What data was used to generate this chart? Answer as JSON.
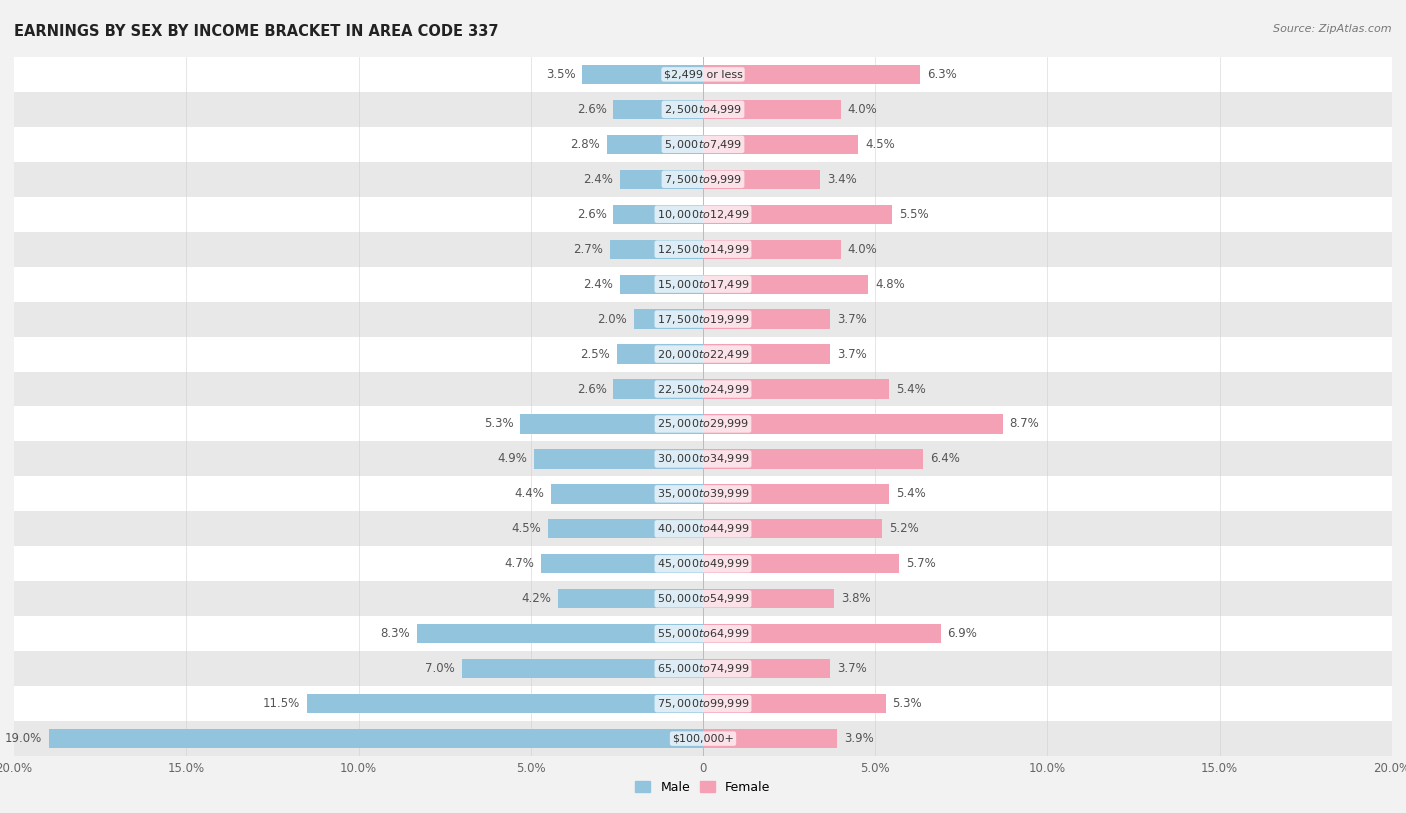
{
  "title": "EARNINGS BY SEX BY INCOME BRACKET IN AREA CODE 337",
  "source": "Source: ZipAtlas.com",
  "categories": [
    "$2,499 or less",
    "$2,500 to $4,999",
    "$5,000 to $7,499",
    "$7,500 to $9,999",
    "$10,000 to $12,499",
    "$12,500 to $14,999",
    "$15,000 to $17,499",
    "$17,500 to $19,999",
    "$20,000 to $22,499",
    "$22,500 to $24,999",
    "$25,000 to $29,999",
    "$30,000 to $34,999",
    "$35,000 to $39,999",
    "$40,000 to $44,999",
    "$45,000 to $49,999",
    "$50,000 to $54,999",
    "$55,000 to $64,999",
    "$65,000 to $74,999",
    "$75,000 to $99,999",
    "$100,000+"
  ],
  "male_values": [
    3.5,
    2.6,
    2.8,
    2.4,
    2.6,
    2.7,
    2.4,
    2.0,
    2.5,
    2.6,
    5.3,
    4.9,
    4.4,
    4.5,
    4.7,
    4.2,
    8.3,
    7.0,
    11.5,
    19.0
  ],
  "female_values": [
    6.3,
    4.0,
    4.5,
    3.4,
    5.5,
    4.0,
    4.8,
    3.7,
    3.7,
    5.4,
    8.7,
    6.4,
    5.4,
    5.2,
    5.7,
    3.8,
    6.9,
    3.7,
    5.3,
    3.9
  ],
  "male_color": "#92c4de",
  "female_color": "#f4a0b5",
  "background_color": "#f2f2f2",
  "row_color_even": "#ffffff",
  "row_color_odd": "#e8e8e8",
  "xlim": 20.0,
  "bar_height": 0.55,
  "title_fontsize": 10.5,
  "label_fontsize": 8.5,
  "tick_fontsize": 8.5,
  "legend_fontsize": 9,
  "cat_label_fontsize": 8.0
}
